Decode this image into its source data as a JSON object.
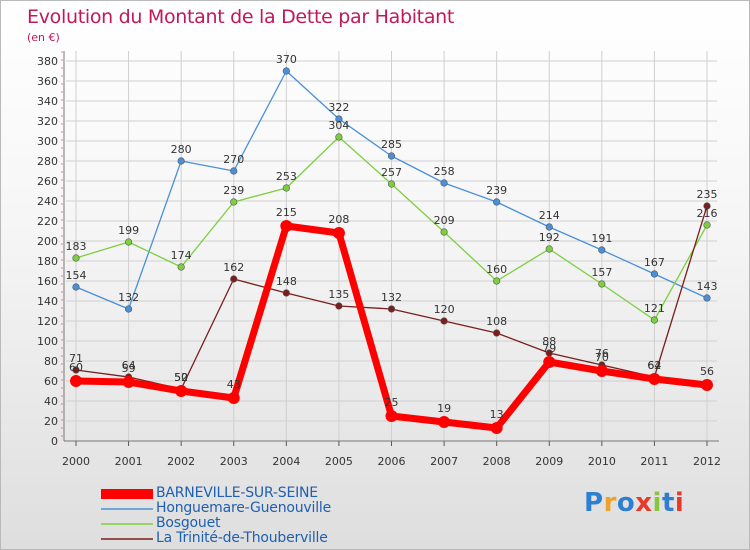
{
  "title": "Evolution du Montant de la Dette par Habitant",
  "subtitle": "(en €)",
  "logo": {
    "text": "Proxiti",
    "colors": [
      "#2f7fd1",
      "#f0a12a",
      "#2f7fd1",
      "#e8392a",
      "#8bc53f",
      "#2f7fd1",
      "#e8392a"
    ]
  },
  "chart_data": {
    "type": "line",
    "title": "Evolution du Montant de la Dette par Habitant",
    "ylabel": "(en €)",
    "xlabel": "",
    "ylim": [
      0,
      380
    ],
    "ytick_step": 20,
    "grid": true,
    "x": [
      "2000",
      "2001",
      "2002",
      "2003",
      "2004",
      "2005",
      "2006",
      "2007",
      "2008",
      "2009",
      "2010",
      "2011",
      "2012"
    ],
    "series": [
      {
        "name": "BARNEVILLE-SUR-SEINE",
        "color": "#ff0000",
        "values": [
          60,
          59,
          50,
          43,
          215,
          208,
          25,
          19,
          13,
          79,
          70,
          62,
          56
        ]
      },
      {
        "name": "Honguemare-Guenouville",
        "color": "#4a90d9",
        "values": [
          154,
          132,
          280,
          270,
          370,
          322,
          285,
          258,
          239,
          214,
          191,
          167,
          143
        ]
      },
      {
        "name": "Bosgouet",
        "color": "#7ccf3f",
        "values": [
          183,
          199,
          174,
          239,
          253,
          304,
          257,
          209,
          160,
          192,
          157,
          121,
          216
        ]
      },
      {
        "name": "La Trinité-de-Thouberville",
        "color": "#7a1e1e",
        "values": [
          71,
          64,
          52,
          162,
          148,
          135,
          132,
          120,
          108,
          88,
          76,
          64,
          235
        ]
      }
    ]
  }
}
